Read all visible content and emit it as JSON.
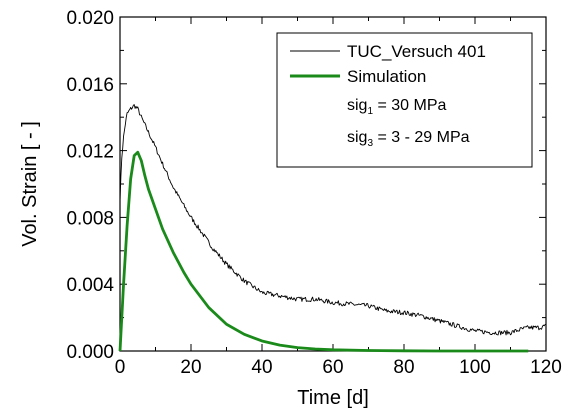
{
  "chart_data": {
    "type": "line",
    "xlabel": "Time [d]",
    "ylabel": "Vol. Strain [ - ]",
    "xlim": [
      0,
      120
    ],
    "ylim": [
      0,
      0.02
    ],
    "x_ticks": [
      "0",
      "20",
      "40",
      "60",
      "80",
      "100",
      "120"
    ],
    "y_ticks": [
      "0.000",
      "0.004",
      "0.008",
      "0.012",
      "0.016",
      "0.020"
    ],
    "grid": false,
    "legend_position": "top-right",
    "series": [
      {
        "name": "TUC_Versuch 401",
        "color": "#000000",
        "x": [
          0,
          0.5,
          1,
          1.5,
          2,
          3,
          4,
          5,
          6,
          8,
          10,
          12,
          15,
          18,
          20,
          23,
          26,
          30,
          35,
          40,
          45,
          50,
          55,
          60,
          65,
          70,
          75,
          80,
          85,
          90,
          95,
          100,
          105,
          110,
          113,
          115,
          118,
          120
        ],
        "y": [
          0.0091,
          0.0116,
          0.0128,
          0.0136,
          0.0142,
          0.0145,
          0.0147,
          0.0145,
          0.014,
          0.0131,
          0.0122,
          0.0112,
          0.0098,
          0.0087,
          0.008,
          0.0071,
          0.0062,
          0.0052,
          0.0042,
          0.0035,
          0.0033,
          0.0031,
          0.0031,
          0.0029,
          0.0028,
          0.0027,
          0.0024,
          0.0023,
          0.0021,
          0.0018,
          0.0015,
          0.0012,
          0.0011,
          0.0011,
          0.0013,
          0.0014,
          0.0014,
          0.0015
        ]
      },
      {
        "name": "Simulation",
        "color": "#1a8a1a",
        "x": [
          0,
          0.5,
          1,
          2,
          3,
          4,
          5,
          6,
          7,
          8,
          10,
          12,
          15,
          18,
          20,
          25,
          30,
          35,
          40,
          45,
          50,
          55,
          60,
          70,
          80,
          90,
          100,
          110,
          115
        ],
        "y": [
          0.0,
          0.002,
          0.004,
          0.0075,
          0.0103,
          0.0117,
          0.0119,
          0.0114,
          0.0105,
          0.0097,
          0.0085,
          0.0073,
          0.0059,
          0.0047,
          0.004,
          0.0026,
          0.0016,
          0.001,
          0.0006,
          0.00035,
          0.0002,
          0.00012,
          7e-05,
          3e-05,
          1e-05,
          0.0,
          0.0,
          0.0,
          0.0
        ]
      }
    ],
    "legend_notes": [
      {
        "main": "sig",
        "sub": "1",
        "rest": " = 30 MPa"
      },
      {
        "main": "sig",
        "sub": "3",
        "rest": " = 3 - 29 MPa"
      }
    ]
  }
}
